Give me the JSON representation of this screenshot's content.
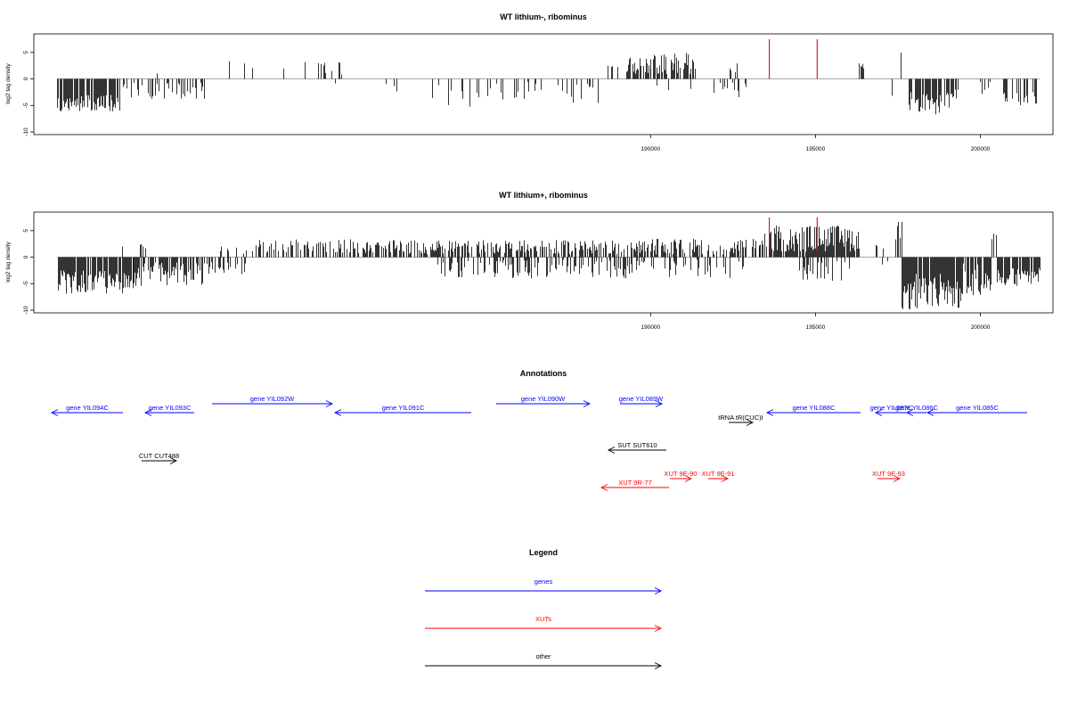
{
  "chart_data": [
    {
      "type": "bar",
      "title": "WT lithium-, ribominus",
      "xlabel": "",
      "ylabel": "log2 tag density",
      "xlim": [
        171300,
        202200
      ],
      "ylim": [
        -10.5,
        8.5
      ],
      "x_ticks": [
        190000,
        195000,
        200000
      ],
      "y_ticks": [
        -10,
        -5,
        0,
        5
      ],
      "grid": false,
      "regions": [
        {
          "from": 172000,
          "to": 173900,
          "sign": -1,
          "min": 3,
          "max": 6.2,
          "density": 0.7
        },
        {
          "from": 174000,
          "to": 176500,
          "sign": -1,
          "min": 0.6,
          "max": 3.8,
          "density": 0.4
        },
        {
          "from": 175000,
          "to": 176500,
          "sign": 1,
          "min": 0.4,
          "max": 1.2,
          "density": 0.03
        },
        {
          "from": 177200,
          "to": 178000,
          "sign": 1,
          "min": 0.8,
          "max": 3.4,
          "density": 0.06
        },
        {
          "from": 178300,
          "to": 182000,
          "sign": 1,
          "min": 0.8,
          "max": 3.4,
          "density": 0.08
        },
        {
          "from": 180200,
          "to": 182800,
          "sign": -1,
          "min": 0.4,
          "max": 3.2,
          "density": 0.05
        },
        {
          "from": 183200,
          "to": 185000,
          "sign": -1,
          "min": 0.5,
          "max": 5.5,
          "density": 0.15
        },
        {
          "from": 185000,
          "to": 188700,
          "sign": -1,
          "min": 0.4,
          "max": 4.6,
          "density": 0.18
        },
        {
          "from": 188700,
          "to": 189100,
          "sign": 1,
          "min": 1.0,
          "max": 3.5,
          "density": 0.2
        },
        {
          "from": 189200,
          "to": 190000,
          "sign": 1,
          "min": 0.8,
          "max": 4.0,
          "density": 0.7
        },
        {
          "from": 190000,
          "to": 191300,
          "sign": 1,
          "min": 0.8,
          "max": 5.0,
          "density": 0.7
        },
        {
          "from": 191300,
          "to": 191600,
          "sign": 1,
          "min": 1.0,
          "max": 3.5,
          "density": 0.3
        },
        {
          "from": 190000,
          "to": 191200,
          "sign": -1,
          "min": 0.5,
          "max": 3.0,
          "density": 0.1
        },
        {
          "from": 191800,
          "to": 192300,
          "sign": -1,
          "min": 0.5,
          "max": 3.0,
          "density": 0.15
        },
        {
          "from": 192400,
          "to": 192800,
          "sign": 1,
          "min": 0.8,
          "max": 3.0,
          "density": 0.2
        },
        {
          "from": 192300,
          "to": 193000,
          "sign": -1,
          "min": 0.5,
          "max": 3.5,
          "density": 0.2
        },
        {
          "from": 193000,
          "to": 193300,
          "sign": 1,
          "min": 0.8,
          "max": 2.5,
          "density": 0.1
        },
        {
          "from": 196300,
          "to": 196500,
          "sign": 1,
          "min": 1.5,
          "max": 3.0,
          "density": 0.3
        },
        {
          "from": 197300,
          "to": 197320,
          "sign": -1,
          "min": 3.0,
          "max": 3.2,
          "density": 1
        },
        {
          "from": 197500,
          "to": 197600,
          "sign": 1,
          "min": 2.0,
          "max": 6.0,
          "density": 0.4
        },
        {
          "from": 197800,
          "to": 199300,
          "sign": -1,
          "min": 2.0,
          "max": 6.8,
          "density": 0.6
        },
        {
          "from": 199300,
          "to": 200500,
          "sign": -1,
          "min": 0.5,
          "max": 3.0,
          "density": 0.1
        },
        {
          "from": 199800,
          "to": 199850,
          "sign": 1,
          "min": 1.5,
          "max": 2.0,
          "density": 0.4
        },
        {
          "from": 200600,
          "to": 201800,
          "sign": -1,
          "min": 2.5,
          "max": 5.5,
          "density": 0.6
        }
      ],
      "highlight_x": [
        193600,
        195050
      ],
      "highlight_y": 7.5
    },
    {
      "type": "bar",
      "title": "WT lithium+, ribominus",
      "xlabel": "",
      "ylabel": "log2 tag density",
      "xlim": [
        171300,
        202200
      ],
      "ylim": [
        -10.5,
        8.5
      ],
      "x_ticks": [
        190000,
        195000,
        200000
      ],
      "y_ticks": [
        -10,
        -5,
        0,
        5
      ],
      "grid": false,
      "regions": [
        {
          "from": 172000,
          "to": 174300,
          "sign": -1,
          "min": 2.5,
          "max": 7.0,
          "density": 0.9
        },
        {
          "from": 173300,
          "to": 174700,
          "sign": 1,
          "min": 0.8,
          "max": 2.6,
          "density": 0.12
        },
        {
          "from": 174300,
          "to": 176500,
          "sign": -1,
          "min": 1.0,
          "max": 5.5,
          "density": 0.7
        },
        {
          "from": 176500,
          "to": 177700,
          "sign": -1,
          "min": 0.5,
          "max": 3.5,
          "density": 0.3
        },
        {
          "from": 176800,
          "to": 178500,
          "sign": 1,
          "min": 0.5,
          "max": 2.5,
          "density": 0.15
        },
        {
          "from": 178000,
          "to": 181000,
          "sign": 1,
          "min": 0.8,
          "max": 3.5,
          "density": 0.5
        },
        {
          "from": 181000,
          "to": 190000,
          "sign": 1,
          "min": 0.6,
          "max": 3.2,
          "density": 0.6
        },
        {
          "from": 183500,
          "to": 190000,
          "sign": -1,
          "min": 0.5,
          "max": 4.0,
          "density": 0.35
        },
        {
          "from": 190000,
          "to": 193300,
          "sign": 1,
          "min": 0.5,
          "max": 3.5,
          "density": 0.5
        },
        {
          "from": 190000,
          "to": 193000,
          "sign": -1,
          "min": 0.5,
          "max": 4.0,
          "density": 0.3
        },
        {
          "from": 193300,
          "to": 193700,
          "sign": 1,
          "min": 1.0,
          "max": 5.0,
          "density": 0.5
        },
        {
          "from": 193700,
          "to": 196300,
          "sign": 1,
          "min": 1.0,
          "max": 6.0,
          "density": 0.9
        },
        {
          "from": 194500,
          "to": 196300,
          "sign": -1,
          "min": 0.5,
          "max": 4.5,
          "density": 0.3
        },
        {
          "from": 196800,
          "to": 197200,
          "sign": 1,
          "min": 0.5,
          "max": 2.5,
          "density": 0.1
        },
        {
          "from": 197000,
          "to": 197300,
          "sign": -1,
          "min": 0.4,
          "max": 1.4,
          "density": 0.1
        },
        {
          "from": 197400,
          "to": 197600,
          "sign": 1,
          "min": 3.0,
          "max": 7.5,
          "density": 0.5
        },
        {
          "from": 197600,
          "to": 199400,
          "sign": -1,
          "min": 3.0,
          "max": 10.0,
          "density": 0.95
        },
        {
          "from": 199400,
          "to": 200400,
          "sign": -1,
          "min": 1.0,
          "max": 7.5,
          "density": 0.7
        },
        {
          "from": 199400,
          "to": 200400,
          "sign": 1,
          "min": 0.3,
          "max": 1.2,
          "density": 0.05
        },
        {
          "from": 200300,
          "to": 200500,
          "sign": 1,
          "min": 2.0,
          "max": 4.5,
          "density": 0.4
        },
        {
          "from": 200500,
          "to": 201800,
          "sign": -1,
          "min": 2.0,
          "max": 6.0,
          "density": 0.85
        }
      ],
      "highlight_x": [
        193600,
        195050
      ],
      "highlight_y": 7.5
    }
  ],
  "annotations": {
    "title": "Annotations",
    "genes": [
      {
        "label": "gene YIL094C",
        "x1": 138,
        "x2": 58,
        "y": 463,
        "dir": "left"
      },
      {
        "label": "gene YIL093C",
        "x1": 218,
        "x2": 163,
        "y": 463,
        "dir": "left"
      },
      {
        "label": "gene YIL092W",
        "x1": 238,
        "x2": 373,
        "y": 453,
        "dir": "right"
      },
      {
        "label": "gene YIL091C",
        "x1": 529,
        "x2": 376,
        "y": 463,
        "dir": "left"
      },
      {
        "label": "gene YIL090W",
        "x1": 557,
        "x2": 662,
        "y": 453,
        "dir": "right"
      },
      {
        "label": "gene YIL089W",
        "x1": 696,
        "x2": 743,
        "y": 453,
        "dir": "right"
      },
      {
        "label": "gene YIL088C",
        "x1": 966,
        "x2": 861,
        "y": 463,
        "dir": "left"
      },
      {
        "label": "gene YIL087C",
        "x1": 1018,
        "x2": 983,
        "y": 463,
        "dir": "left"
      },
      {
        "label": "gene YIL086C",
        "x1": 1040,
        "x2": 1018,
        "y": 463,
        "dir": "left"
      },
      {
        "label": "gene YIL085C",
        "x1": 1153,
        "x2": 1041,
        "y": 463,
        "dir": "left"
      }
    ],
    "others": [
      {
        "label": "tRNA tR(CUC)I",
        "x1": 818,
        "x2": 845,
        "y": 474,
        "dir": "right"
      },
      {
        "label": "SUT SUT610",
        "x1": 748,
        "x2": 683,
        "y": 505,
        "dir": "left"
      },
      {
        "label": "CUT CUT488",
        "x1": 159,
        "x2": 198,
        "y": 517,
        "dir": "right"
      }
    ],
    "xuts": [
      {
        "label": "XUT 9E-90",
        "x1": 752,
        "x2": 776,
        "y": 537,
        "dir": "right"
      },
      {
        "label": "XUT 9E-91",
        "x1": 795,
        "x2": 817,
        "y": 537,
        "dir": "right"
      },
      {
        "label": "XUT 9E-93",
        "x1": 985,
        "x2": 1010,
        "y": 537,
        "dir": "right"
      },
      {
        "label": "XUT 9R-77",
        "x1": 751,
        "x2": 675,
        "y": 547,
        "dir": "left"
      }
    ]
  },
  "legend": {
    "title": "Legend",
    "items": [
      {
        "label": "genes",
        "color": "#0000ff"
      },
      {
        "label": "XUTs",
        "color": "#ff0000"
      },
      {
        "label": "other",
        "color": "#000000"
      }
    ]
  },
  "colors": {
    "genes": "#0000ff",
    "xuts": "#ff0000",
    "other": "#000000",
    "highlight": "#c00000",
    "baseline": "#9a9a9a"
  }
}
